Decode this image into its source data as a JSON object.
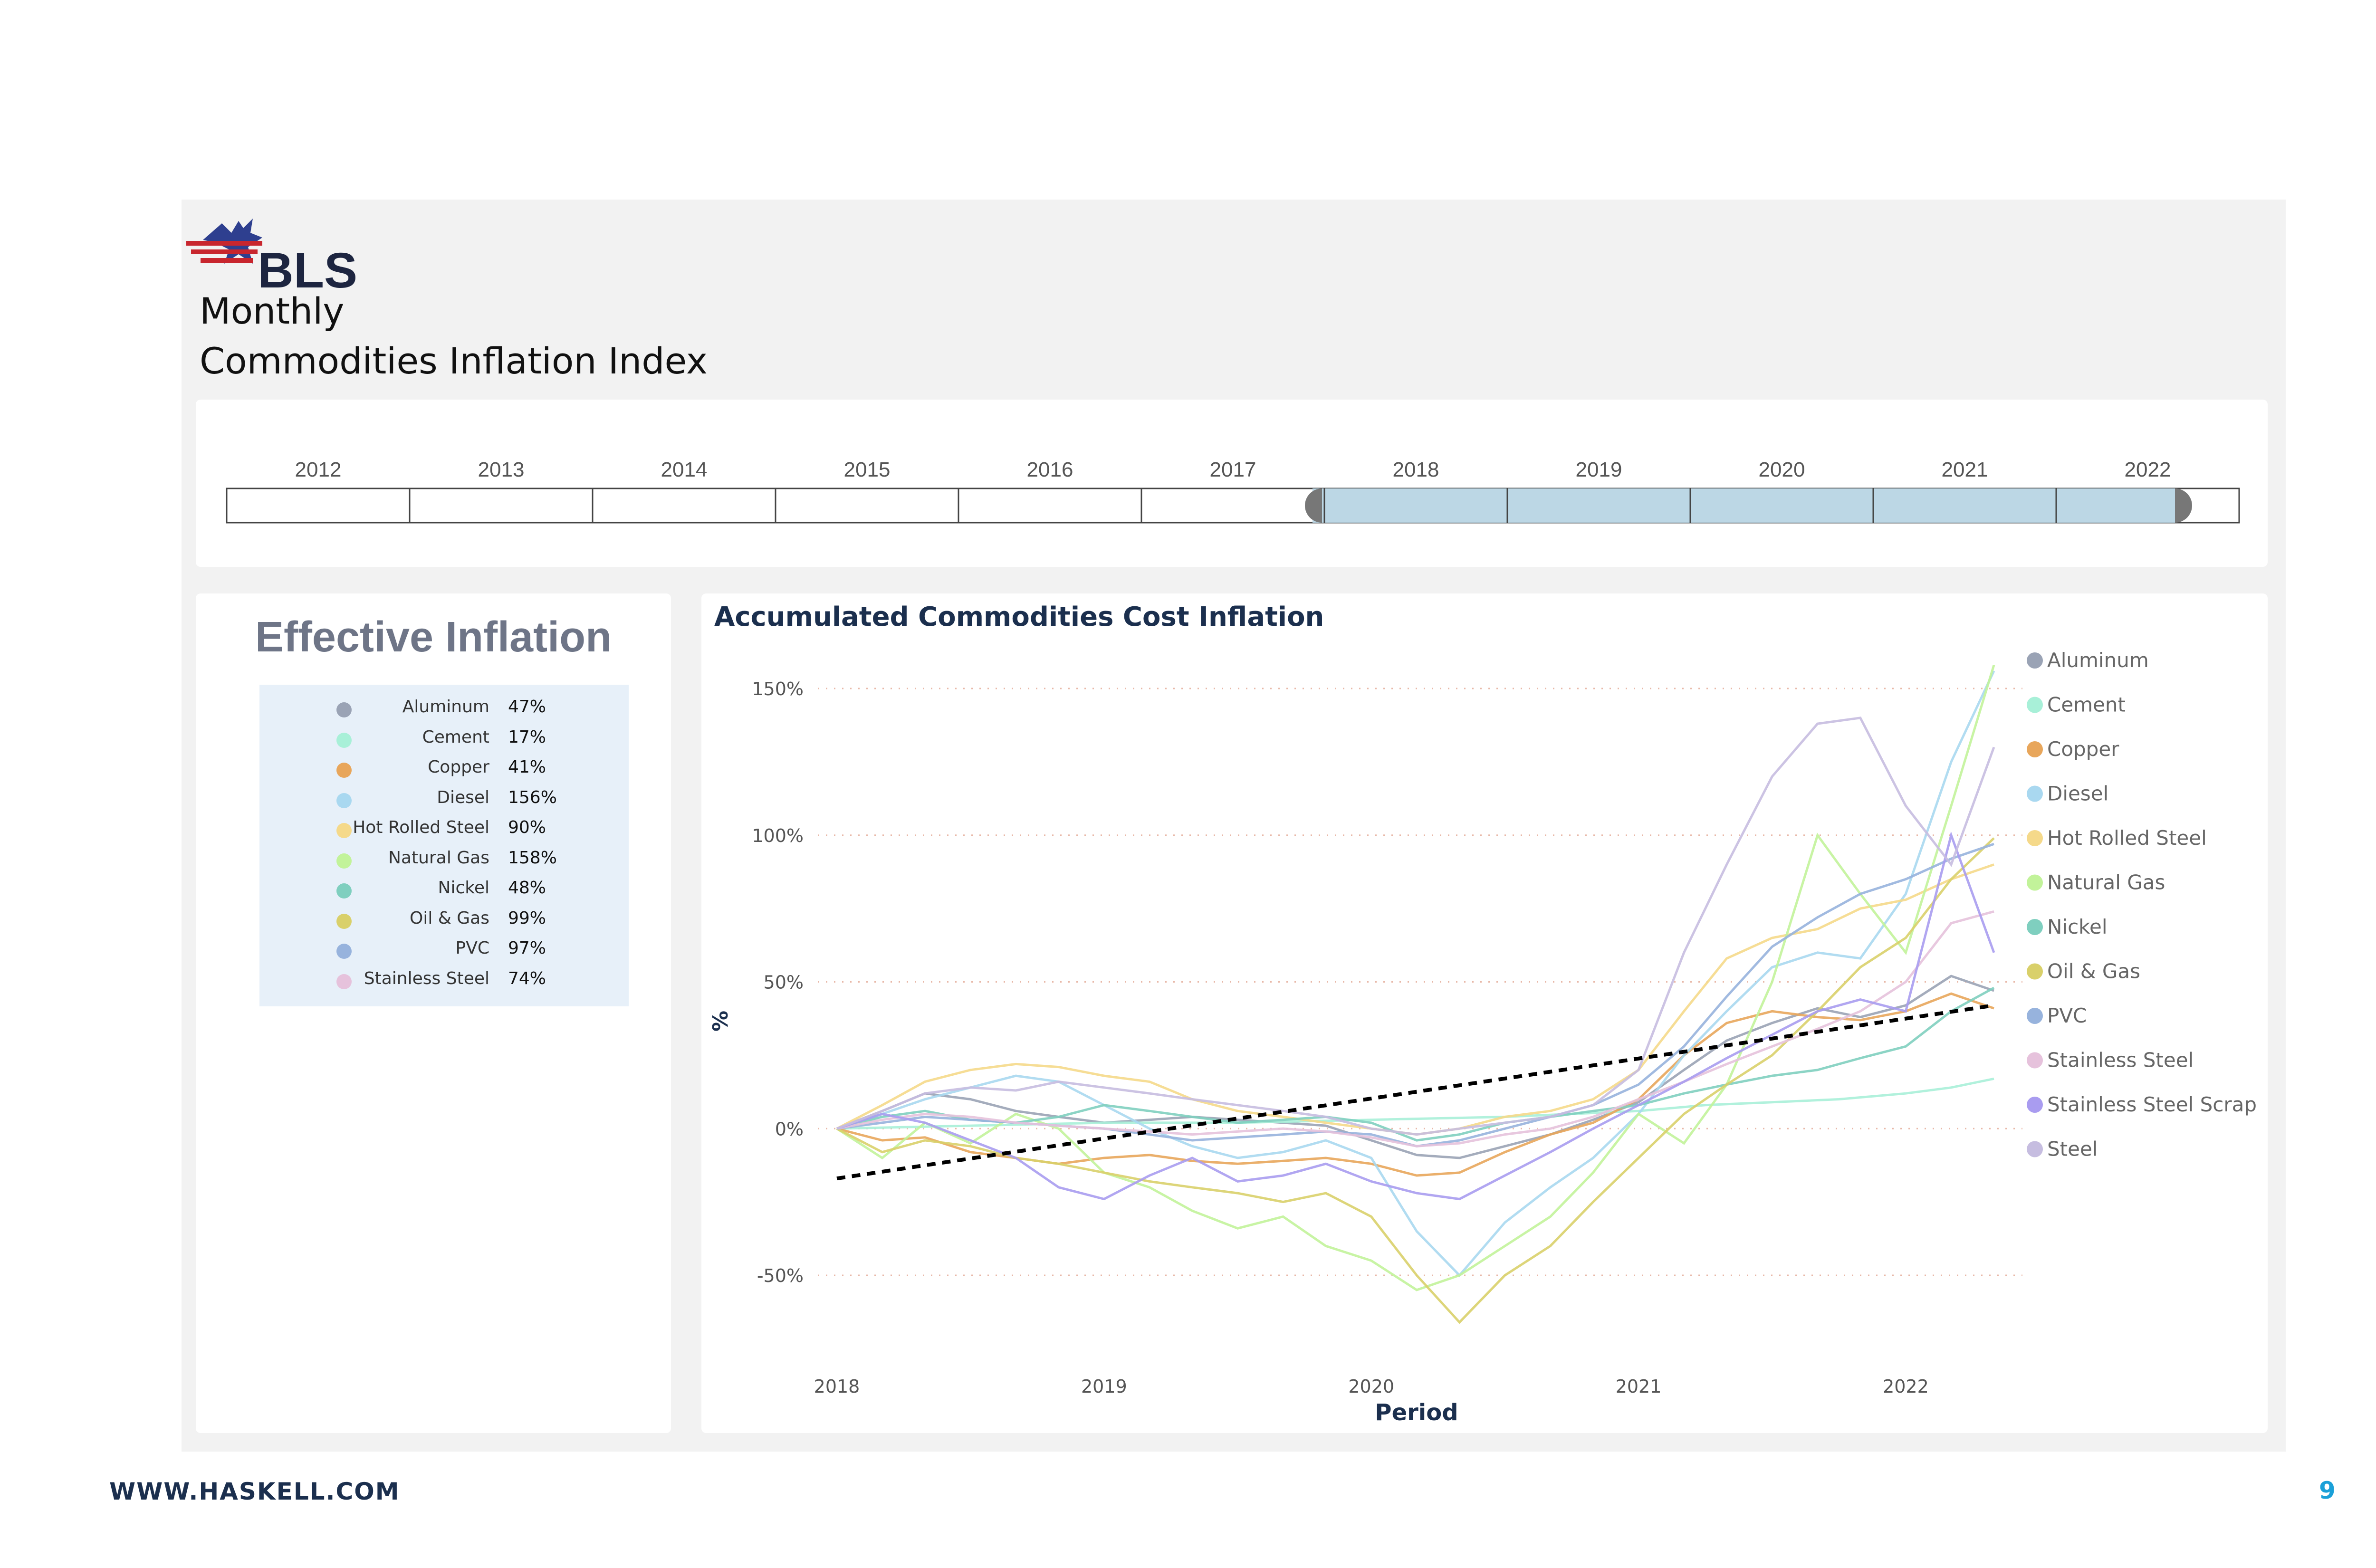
{
  "header": {
    "logo_text": "BLS",
    "title_line1": "Monthly",
    "title_line2": "Commodities Inflation Index"
  },
  "timeline": {
    "years": [
      "2012",
      "2013",
      "2014",
      "2015",
      "2016",
      "2017",
      "2018",
      "2019",
      "2020",
      "2021",
      "2022"
    ],
    "selected_start": "2018",
    "selected_end": "2022",
    "selection_color": "#bcd7e5"
  },
  "effective_inflation": {
    "title": "Effective Inflation",
    "rows": [
      {
        "name": "Aluminum",
        "value": "47%",
        "color": "#9aa3b5"
      },
      {
        "name": "Cement",
        "value": "17%",
        "color": "#a8f0d8"
      },
      {
        "name": "Copper",
        "value": "41%",
        "color": "#e8a65b"
      },
      {
        "name": "Diesel",
        "value": "156%",
        "color": "#a9d8f0"
      },
      {
        "name": "Hot Rolled Steel",
        "value": "90%",
        "color": "#f5d98a"
      },
      {
        "name": "Natural Gas",
        "value": "158%",
        "color": "#c2f39a"
      },
      {
        "name": "Nickel",
        "value": "48%",
        "color": "#7fcfbf"
      },
      {
        "name": "Oil & Gas",
        "value": "99%",
        "color": "#d9d06a"
      },
      {
        "name": "PVC",
        "value": "97%",
        "color": "#97b3dd"
      },
      {
        "name": "Stainless Steel",
        "value": "74%",
        "color": "#e6c2dc"
      }
    ]
  },
  "footer": {
    "url": "WWW.HASKELL.COM",
    "page": "9"
  },
  "chart_data": {
    "type": "line",
    "title": "Accumulated Commodities Cost Inflation",
    "xlabel": "Period",
    "ylabel": "%",
    "x_ticks": [
      "2018",
      "2019",
      "2020",
      "2021",
      "2022"
    ],
    "y_ticks": [
      "150%",
      "100%",
      "50%",
      "0%",
      "-50%"
    ],
    "ylim": [
      -50,
      150
    ],
    "xlim": [
      2018.0,
      2022.33
    ],
    "grid": "horizontal dotted",
    "legend_position": "right",
    "trend_line": {
      "style": "dashed black",
      "x": [
        2018.0,
        2022.33
      ],
      "y": [
        -17,
        42
      ]
    },
    "series": [
      {
        "name": "Aluminum",
        "color": "#9aa3b5",
        "x": [
          2018.0,
          2018.17,
          2018.33,
          2018.5,
          2018.67,
          2018.83,
          2019.0,
          2019.17,
          2019.33,
          2019.5,
          2019.67,
          2019.83,
          2020.0,
          2020.17,
          2020.33,
          2020.5,
          2020.67,
          2020.83,
          2021.0,
          2021.17,
          2021.33,
          2021.5,
          2021.67,
          2021.83,
          2022.0,
          2022.17,
          2022.33
        ],
        "y": [
          0,
          6,
          12,
          10,
          6,
          4,
          2,
          3,
          4,
          3,
          2,
          1,
          -4,
          -9,
          -10,
          -6,
          -2,
          3,
          9,
          20,
          30,
          36,
          41,
          38,
          42,
          52,
          47
        ]
      },
      {
        "name": "Cement",
        "color": "#a8f0d8",
        "x": [
          2018.0,
          2018.5,
          2019.0,
          2019.5,
          2020.0,
          2020.5,
          2021.0,
          2021.25,
          2021.5,
          2021.75,
          2022.0,
          2022.17,
          2022.33
        ],
        "y": [
          0,
          1,
          2,
          2,
          3,
          4,
          6,
          8,
          9,
          10,
          12,
          14,
          17
        ]
      },
      {
        "name": "Copper",
        "color": "#e8a65b",
        "x": [
          2018.0,
          2018.17,
          2018.33,
          2018.5,
          2018.67,
          2018.83,
          2019.0,
          2019.17,
          2019.33,
          2019.5,
          2019.67,
          2019.83,
          2020.0,
          2020.17,
          2020.33,
          2020.5,
          2020.67,
          2020.83,
          2021.0,
          2021.17,
          2021.33,
          2021.5,
          2021.67,
          2021.83,
          2022.0,
          2022.17,
          2022.33
        ],
        "y": [
          0,
          -4,
          -3,
          -8,
          -10,
          -12,
          -10,
          -9,
          -11,
          -12,
          -11,
          -10,
          -12,
          -16,
          -15,
          -8,
          -2,
          2,
          10,
          25,
          36,
          40,
          38,
          37,
          40,
          46,
          41
        ]
      },
      {
        "name": "Diesel",
        "color": "#a9d8f0",
        "x": [
          2018.0,
          2018.17,
          2018.33,
          2018.5,
          2018.67,
          2018.83,
          2019.0,
          2019.17,
          2019.33,
          2019.5,
          2019.67,
          2019.83,
          2020.0,
          2020.17,
          2020.33,
          2020.5,
          2020.67,
          2020.83,
          2021.0,
          2021.17,
          2021.33,
          2021.5,
          2021.67,
          2021.83,
          2022.0,
          2022.17,
          2022.33
        ],
        "y": [
          0,
          5,
          10,
          14,
          18,
          16,
          8,
          0,
          -6,
          -10,
          -8,
          -4,
          -10,
          -35,
          -50,
          -32,
          -20,
          -10,
          5,
          25,
          40,
          55,
          60,
          58,
          80,
          125,
          156
        ]
      },
      {
        "name": "Hot Rolled Steel",
        "color": "#f5d98a",
        "x": [
          2018.0,
          2018.17,
          2018.33,
          2018.5,
          2018.67,
          2018.83,
          2019.0,
          2019.17,
          2019.33,
          2019.5,
          2019.67,
          2019.83,
          2020.0,
          2020.17,
          2020.33,
          2020.5,
          2020.67,
          2020.83,
          2021.0,
          2021.17,
          2021.33,
          2021.5,
          2021.67,
          2021.83,
          2022.0,
          2022.17,
          2022.33
        ],
        "y": [
          0,
          8,
          16,
          20,
          22,
          21,
          18,
          16,
          10,
          6,
          4,
          2,
          0,
          -2,
          0,
          4,
          6,
          10,
          20,
          40,
          58,
          65,
          68,
          75,
          78,
          85,
          90
        ]
      },
      {
        "name": "Natural Gas",
        "color": "#c2f39a",
        "x": [
          2018.0,
          2018.17,
          2018.33,
          2018.5,
          2018.67,
          2018.83,
          2019.0,
          2019.17,
          2019.33,
          2019.5,
          2019.67,
          2019.83,
          2020.0,
          2020.17,
          2020.33,
          2020.5,
          2020.67,
          2020.83,
          2021.0,
          2021.17,
          2021.33,
          2021.5,
          2021.67,
          2021.83,
          2022.0,
          2022.17,
          2022.33
        ],
        "y": [
          0,
          -10,
          2,
          -5,
          5,
          0,
          -15,
          -20,
          -28,
          -34,
          -30,
          -40,
          -45,
          -55,
          -50,
          -40,
          -30,
          -15,
          5,
          -5,
          15,
          50,
          100,
          80,
          60,
          110,
          158
        ]
      },
      {
        "name": "Nickel",
        "color": "#7fcfbf",
        "x": [
          2018.0,
          2018.17,
          2018.33,
          2018.5,
          2018.67,
          2018.83,
          2019.0,
          2019.17,
          2019.33,
          2019.5,
          2019.67,
          2019.83,
          2020.0,
          2020.17,
          2020.33,
          2020.5,
          2020.67,
          2020.83,
          2021.0,
          2021.17,
          2021.33,
          2021.5,
          2021.67,
          2021.83,
          2022.0,
          2022.17,
          2022.33
        ],
        "y": [
          0,
          4,
          6,
          3,
          2,
          4,
          8,
          6,
          4,
          2,
          3,
          4,
          2,
          -4,
          -2,
          2,
          4,
          6,
          8,
          12,
          15,
          18,
          20,
          24,
          28,
          40,
          48
        ]
      },
      {
        "name": "Oil & Gas",
        "color": "#d9d06a",
        "x": [
          2018.0,
          2018.17,
          2018.33,
          2018.5,
          2018.67,
          2018.83,
          2019.0,
          2019.17,
          2019.33,
          2019.5,
          2019.67,
          2019.83,
          2020.0,
          2020.17,
          2020.33,
          2020.5,
          2020.67,
          2020.83,
          2021.0,
          2021.17,
          2021.33,
          2021.5,
          2021.67,
          2021.83,
          2022.0,
          2022.17,
          2022.33
        ],
        "y": [
          0,
          -8,
          -4,
          -6,
          -10,
          -12,
          -15,
          -18,
          -20,
          -22,
          -25,
          -22,
          -30,
          -50,
          -66,
          -50,
          -40,
          -25,
          -10,
          5,
          15,
          25,
          40,
          55,
          65,
          85,
          99
        ]
      },
      {
        "name": "PVC",
        "color": "#97b3dd",
        "x": [
          2018.0,
          2018.17,
          2018.33,
          2018.5,
          2018.67,
          2018.83,
          2019.0,
          2019.17,
          2019.33,
          2019.5,
          2019.67,
          2019.83,
          2020.0,
          2020.17,
          2020.33,
          2020.5,
          2020.67,
          2020.83,
          2021.0,
          2021.17,
          2021.33,
          2021.5,
          2021.67,
          2021.83,
          2022.0,
          2022.17,
          2022.33
        ],
        "y": [
          0,
          2,
          4,
          3,
          2,
          1,
          0,
          -2,
          -4,
          -3,
          -2,
          -1,
          -2,
          -6,
          -4,
          0,
          4,
          8,
          15,
          28,
          45,
          62,
          72,
          80,
          85,
          92,
          97
        ]
      },
      {
        "name": "Stainless Steel",
        "color": "#e6c2dc",
        "x": [
          2018.0,
          2018.17,
          2018.33,
          2018.5,
          2018.67,
          2018.83,
          2019.0,
          2019.17,
          2019.33,
          2019.5,
          2019.67,
          2019.83,
          2020.0,
          2020.17,
          2020.33,
          2020.5,
          2020.67,
          2020.83,
          2021.0,
          2021.17,
          2021.33,
          2021.5,
          2021.67,
          2021.83,
          2022.0,
          2022.17,
          2022.33
        ],
        "y": [
          0,
          3,
          5,
          4,
          2,
          1,
          0,
          -1,
          -2,
          -1,
          0,
          -1,
          -3,
          -6,
          -5,
          -2,
          0,
          4,
          10,
          16,
          22,
          28,
          34,
          40,
          50,
          70,
          74
        ]
      },
      {
        "name": "Stainless Steel Scrap",
        "color": "#a99cf0",
        "x": [
          2018.0,
          2018.17,
          2018.33,
          2018.5,
          2018.67,
          2018.83,
          2019.0,
          2019.17,
          2019.33,
          2019.5,
          2019.67,
          2019.83,
          2020.0,
          2020.17,
          2020.33,
          2020.5,
          2020.67,
          2020.83,
          2021.0,
          2021.17,
          2021.33,
          2021.5,
          2021.67,
          2021.83,
          2022.0,
          2022.17,
          2022.33
        ],
        "y": [
          0,
          5,
          2,
          -4,
          -10,
          -20,
          -24,
          -16,
          -10,
          -18,
          -16,
          -12,
          -18,
          -22,
          -24,
          -16,
          -8,
          0,
          8,
          16,
          24,
          32,
          40,
          44,
          40,
          100,
          60
        ]
      },
      {
        "name": "Steel",
        "color": "#c6bde0",
        "x": [
          2018.0,
          2018.17,
          2018.33,
          2018.5,
          2018.67,
          2018.83,
          2019.0,
          2019.17,
          2019.33,
          2019.5,
          2019.67,
          2019.83,
          2020.0,
          2020.17,
          2020.33,
          2020.5,
          2020.67,
          2020.83,
          2021.0,
          2021.17,
          2021.33,
          2021.5,
          2021.67,
          2021.83,
          2022.0,
          2022.17,
          2022.33
        ],
        "y": [
          0,
          6,
          12,
          14,
          13,
          16,
          14,
          12,
          10,
          8,
          6,
          4,
          0,
          -2,
          0,
          2,
          4,
          8,
          20,
          60,
          90,
          120,
          138,
          140,
          110,
          90,
          130
        ]
      }
    ]
  }
}
